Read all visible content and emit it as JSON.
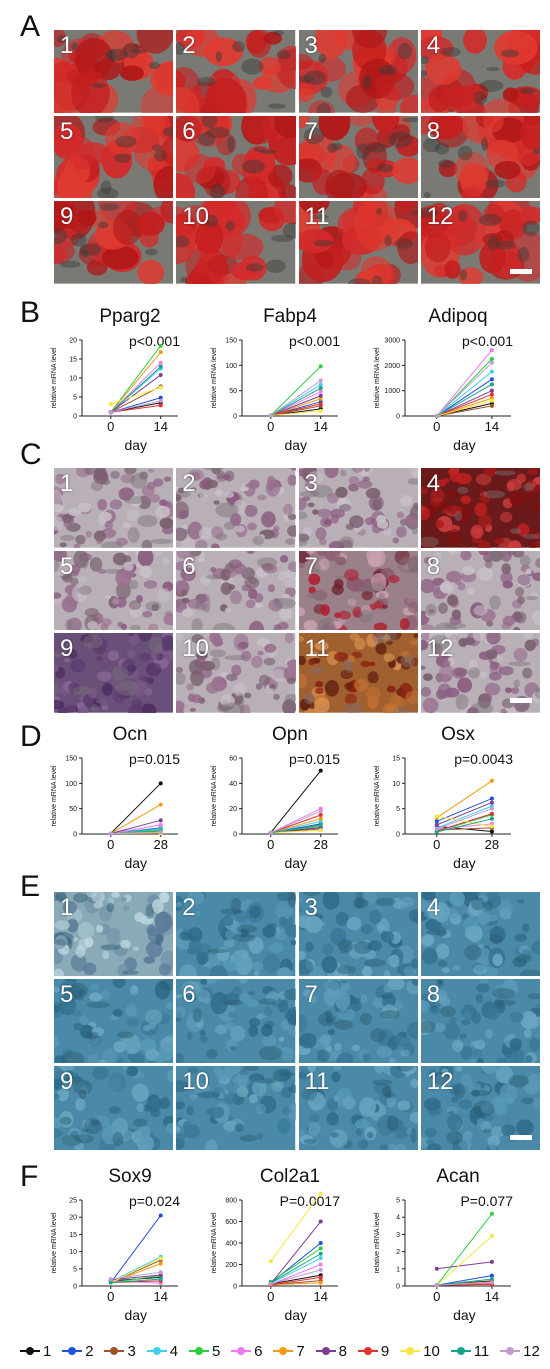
{
  "panels": {
    "A": {
      "letter": "A",
      "tiles": [
        "1",
        "2",
        "3",
        "4",
        "5",
        "6",
        "7",
        "8",
        "9",
        "10",
        "11",
        "12"
      ]
    },
    "B": {
      "letter": "B"
    },
    "C": {
      "letter": "C",
      "tiles": [
        "1",
        "2",
        "3",
        "4",
        "5",
        "6",
        "7",
        "8",
        "9",
        "10",
        "11",
        "12"
      ]
    },
    "D": {
      "letter": "D"
    },
    "E": {
      "letter": "E",
      "tiles": [
        "1",
        "2",
        "3",
        "4",
        "5",
        "6",
        "7",
        "8",
        "9",
        "10",
        "11",
        "12"
      ]
    },
    "F": {
      "letter": "F"
    }
  },
  "legend": {
    "items": [
      {
        "label": "1",
        "color": "#111111"
      },
      {
        "label": "2",
        "color": "#1f4fd8"
      },
      {
        "label": "3",
        "color": "#a0522d"
      },
      {
        "label": "4",
        "color": "#3fd0f0"
      },
      {
        "label": "5",
        "color": "#2ecc40"
      },
      {
        "label": "6",
        "color": "#f078f0"
      },
      {
        "label": "7",
        "color": "#f39c12"
      },
      {
        "label": "8",
        "color": "#7d3c98"
      },
      {
        "label": "9",
        "color": "#e03030"
      },
      {
        "label": "10",
        "color": "#f4e842"
      },
      {
        "label": "11",
        "color": "#17a589"
      },
      {
        "label": "12",
        "color": "#c39bd3"
      }
    ]
  },
  "chart_data": [
    {
      "panel": "B",
      "type": "line",
      "title": "Pparg2",
      "ylabel": "relative mRNA level",
      "xlabel": "day",
      "x": [
        "0",
        "14"
      ],
      "ylim": [
        0,
        20
      ],
      "yticks": [
        0,
        5,
        10,
        15,
        20
      ],
      "annotation": "p<0.001",
      "series": [
        {
          "name": "1",
          "values": [
            1.0,
            3.5
          ]
        },
        {
          "name": "2",
          "values": [
            1.0,
            4.8
          ]
        },
        {
          "name": "3",
          "values": [
            1.0,
            7.8
          ]
        },
        {
          "name": "4",
          "values": [
            1.0,
            12.5
          ]
        },
        {
          "name": "5",
          "values": [
            1.0,
            18.5
          ]
        },
        {
          "name": "6",
          "values": [
            1.0,
            14.0
          ]
        },
        {
          "name": "7",
          "values": [
            1.0,
            16.8
          ]
        },
        {
          "name": "8",
          "values": [
            1.0,
            10.8
          ]
        },
        {
          "name": "9",
          "values": [
            1.0,
            2.8
          ]
        },
        {
          "name": "10",
          "values": [
            3.2,
            7.5
          ]
        },
        {
          "name": "11",
          "values": [
            1.0,
            13.0
          ]
        },
        {
          "name": "12",
          "values": [
            1.0,
            4.0
          ]
        }
      ]
    },
    {
      "panel": "B",
      "type": "line",
      "title": "Fabp4",
      "ylabel": "relative mRNA level",
      "xlabel": "day",
      "x": [
        "0",
        "14"
      ],
      "ylim": [
        0,
        150
      ],
      "yticks": [
        0,
        50,
        100,
        150
      ],
      "annotation": "p<0.001",
      "series": [
        {
          "name": "1",
          "values": [
            1,
            14
          ]
        },
        {
          "name": "2",
          "values": [
            1,
            28
          ]
        },
        {
          "name": "3",
          "values": [
            1,
            20
          ]
        },
        {
          "name": "4",
          "values": [
            1,
            62
          ]
        },
        {
          "name": "5",
          "values": [
            1,
            98
          ]
        },
        {
          "name": "6",
          "values": [
            1,
            48
          ]
        },
        {
          "name": "7",
          "values": [
            1,
            34
          ]
        },
        {
          "name": "8",
          "values": [
            1,
            40
          ]
        },
        {
          "name": "9",
          "values": [
            1,
            24
          ]
        },
        {
          "name": "10",
          "values": [
            1,
            10
          ]
        },
        {
          "name": "11",
          "values": [
            1,
            55
          ]
        },
        {
          "name": "12",
          "values": [
            1,
            70
          ]
        }
      ]
    },
    {
      "panel": "B",
      "type": "line",
      "title": "Adipoq",
      "ylabel": "relative mRNA level",
      "xlabel": "day",
      "x": [
        "0",
        "14"
      ],
      "ylim": [
        0,
        3000
      ],
      "yticks": [
        0,
        1000,
        2000,
        3000
      ],
      "annotation": "p<0.001",
      "series": [
        {
          "name": "1",
          "values": [
            1,
            500
          ]
        },
        {
          "name": "2",
          "values": [
            1,
            1450
          ]
        },
        {
          "name": "3",
          "values": [
            1,
            400
          ]
        },
        {
          "name": "4",
          "values": [
            1,
            1750
          ]
        },
        {
          "name": "5",
          "values": [
            1,
            2250
          ]
        },
        {
          "name": "6",
          "values": [
            1,
            2600
          ]
        },
        {
          "name": "7",
          "values": [
            1,
            700
          ]
        },
        {
          "name": "8",
          "values": [
            1,
            1000
          ]
        },
        {
          "name": "9",
          "values": [
            1,
            850
          ]
        },
        {
          "name": "10",
          "values": [
            1,
            600
          ]
        },
        {
          "name": "11",
          "values": [
            1,
            1250
          ]
        },
        {
          "name": "12",
          "values": [
            1,
            2100
          ]
        }
      ]
    },
    {
      "panel": "D",
      "type": "line",
      "title": "Ocn",
      "ylabel": "relative mRNA level",
      "xlabel": "day",
      "x": [
        "0",
        "28"
      ],
      "ylim": [
        0,
        150
      ],
      "yticks": [
        0,
        50,
        100,
        150
      ],
      "annotation": "p=0.015",
      "series": [
        {
          "name": "1",
          "values": [
            1,
            100
          ]
        },
        {
          "name": "2",
          "values": [
            1,
            12
          ]
        },
        {
          "name": "3",
          "values": [
            1,
            5
          ]
        },
        {
          "name": "4",
          "values": [
            1,
            10
          ]
        },
        {
          "name": "5",
          "values": [
            1,
            8
          ]
        },
        {
          "name": "6",
          "values": [
            1,
            18
          ]
        },
        {
          "name": "7",
          "values": [
            1,
            58
          ]
        },
        {
          "name": "8",
          "values": [
            1,
            27
          ]
        },
        {
          "name": "9",
          "values": [
            1,
            3
          ]
        },
        {
          "name": "10",
          "values": [
            1,
            2
          ]
        },
        {
          "name": "11",
          "values": [
            1,
            6
          ]
        },
        {
          "name": "12",
          "values": [
            1,
            4
          ]
        }
      ]
    },
    {
      "panel": "D",
      "type": "line",
      "title": "Opn",
      "ylabel": "relative mRNA level",
      "xlabel": "day",
      "x": [
        "0",
        "28"
      ],
      "ylim": [
        0,
        60
      ],
      "yticks": [
        0,
        20,
        40,
        60
      ],
      "annotation": "p=0.015",
      "series": [
        {
          "name": "1",
          "values": [
            1,
            50
          ]
        },
        {
          "name": "2",
          "values": [
            1,
            8
          ]
        },
        {
          "name": "3",
          "values": [
            1,
            4
          ]
        },
        {
          "name": "4",
          "values": [
            1,
            10
          ]
        },
        {
          "name": "5",
          "values": [
            1,
            6
          ]
        },
        {
          "name": "6",
          "values": [
            1,
            20
          ]
        },
        {
          "name": "7",
          "values": [
            1,
            12
          ]
        },
        {
          "name": "8",
          "values": [
            1,
            5
          ]
        },
        {
          "name": "9",
          "values": [
            1,
            15
          ]
        },
        {
          "name": "10",
          "values": [
            1,
            3
          ]
        },
        {
          "name": "11",
          "values": [
            1,
            7
          ]
        },
        {
          "name": "12",
          "values": [
            1,
            18
          ]
        }
      ]
    },
    {
      "panel": "D",
      "type": "line",
      "title": "Osx",
      "ylabel": "relative mRNA level",
      "xlabel": "day",
      "x": [
        "0",
        "28"
      ],
      "ylim": [
        0,
        15
      ],
      "yticks": [
        0,
        5,
        10,
        15
      ],
      "annotation": "p=0.0043",
      "series": [
        {
          "name": "1",
          "values": [
            1.5,
            0.5
          ]
        },
        {
          "name": "2",
          "values": [
            2.5,
            7.0
          ]
        },
        {
          "name": "3",
          "values": [
            0.8,
            1.2
          ]
        },
        {
          "name": "4",
          "values": [
            1.2,
            5.5
          ]
        },
        {
          "name": "5",
          "values": [
            0.5,
            3.8
          ]
        },
        {
          "name": "6",
          "values": [
            1.0,
            2.0
          ]
        },
        {
          "name": "7",
          "values": [
            3.2,
            10.5
          ]
        },
        {
          "name": "8",
          "values": [
            1.8,
            6.2
          ]
        },
        {
          "name": "9",
          "values": [
            0.6,
            4.0
          ]
        },
        {
          "name": "10",
          "values": [
            3.5,
            1.5
          ]
        },
        {
          "name": "11",
          "values": [
            0.4,
            3.0
          ]
        },
        {
          "name": "12",
          "values": [
            1.0,
            5.0
          ]
        }
      ]
    },
    {
      "panel": "F",
      "type": "line",
      "title": "Sox9",
      "ylabel": "relative mRNA level",
      "xlabel": "day",
      "x": [
        "0",
        "14"
      ],
      "ylim": [
        0,
        25
      ],
      "yticks": [
        0,
        5,
        10,
        15,
        20,
        25
      ],
      "annotation": "p=0.024",
      "series": [
        {
          "name": "1",
          "values": [
            1.5,
            2.5
          ]
        },
        {
          "name": "2",
          "values": [
            1.0,
            20.5
          ]
        },
        {
          "name": "3",
          "values": [
            1.0,
            7.5
          ]
        },
        {
          "name": "4",
          "values": [
            1.2,
            8.5
          ]
        },
        {
          "name": "5",
          "values": [
            1.0,
            3.0
          ]
        },
        {
          "name": "6",
          "values": [
            1.5,
            0.8
          ]
        },
        {
          "name": "7",
          "values": [
            1.0,
            6.5
          ]
        },
        {
          "name": "8",
          "values": [
            1.8,
            3.2
          ]
        },
        {
          "name": "9",
          "values": [
            1.0,
            1.5
          ]
        },
        {
          "name": "10",
          "values": [
            1.0,
            8.0
          ]
        },
        {
          "name": "11",
          "values": [
            1.0,
            2.0
          ]
        },
        {
          "name": "12",
          "values": [
            2.0,
            4.0
          ]
        }
      ]
    },
    {
      "panel": "F",
      "type": "line",
      "title": "Col2a1",
      "ylabel": "relative mRNA level",
      "xlabel": "day",
      "x": [
        "0",
        "14"
      ],
      "ylim": [
        0,
        800
      ],
      "yticks": [
        0,
        200,
        400,
        600,
        800
      ],
      "annotation": "P=0.0017",
      "series": [
        {
          "name": "1",
          "values": [
            20,
            100
          ]
        },
        {
          "name": "2",
          "values": [
            30,
            400
          ]
        },
        {
          "name": "3",
          "values": [
            10,
            50
          ]
        },
        {
          "name": "4",
          "values": [
            25,
            260
          ]
        },
        {
          "name": "5",
          "values": [
            40,
            350
          ]
        },
        {
          "name": "6",
          "values": [
            15,
            200
          ]
        },
        {
          "name": "7",
          "values": [
            10,
            30
          ]
        },
        {
          "name": "8",
          "values": [
            20,
            600
          ]
        },
        {
          "name": "9",
          "values": [
            10,
            80
          ]
        },
        {
          "name": "10",
          "values": [
            230,
            860
          ]
        },
        {
          "name": "11",
          "values": [
            30,
            300
          ]
        },
        {
          "name": "12",
          "values": [
            20,
            150
          ]
        }
      ]
    },
    {
      "panel": "F",
      "type": "line",
      "title": "Acan",
      "ylabel": "relative mRNA level",
      "xlabel": "day",
      "x": [
        "0",
        "14"
      ],
      "ylim": [
        0,
        5
      ],
      "yticks": [
        0,
        1,
        2,
        3,
        4,
        5
      ],
      "annotation": "P=0.077",
      "series": [
        {
          "name": "1",
          "values": [
            0.05,
            0.3
          ]
        },
        {
          "name": "2",
          "values": [
            0.05,
            0.6
          ]
        },
        {
          "name": "3",
          "values": [
            0.05,
            0.1
          ]
        },
        {
          "name": "4",
          "values": [
            0.05,
            0.2
          ]
        },
        {
          "name": "5",
          "values": [
            0.05,
            4.2
          ]
        },
        {
          "name": "6",
          "values": [
            0.05,
            0.15
          ]
        },
        {
          "name": "7",
          "values": [
            0.05,
            0.25
          ]
        },
        {
          "name": "8",
          "values": [
            1.0,
            1.4
          ]
        },
        {
          "name": "9",
          "values": [
            0.05,
            0.1
          ]
        },
        {
          "name": "10",
          "values": [
            0.05,
            2.9
          ]
        },
        {
          "name": "11",
          "values": [
            0.05,
            0.4
          ]
        },
        {
          "name": "12",
          "values": [
            0.05,
            0.2
          ]
        }
      ]
    }
  ]
}
